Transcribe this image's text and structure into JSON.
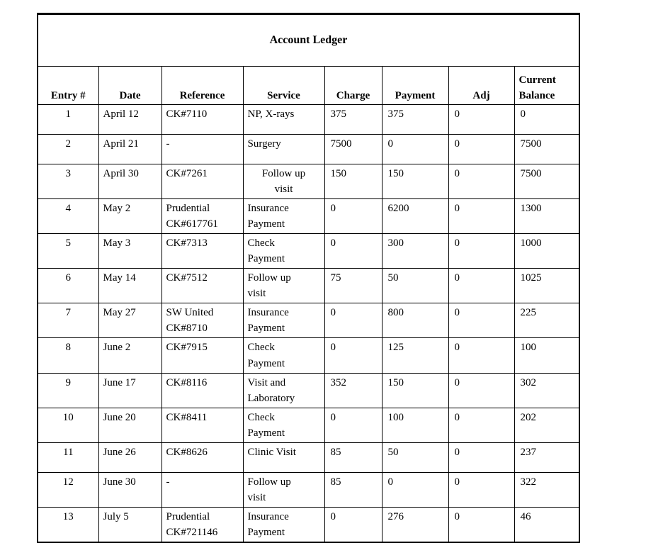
{
  "page": {
    "background": "#ffffff",
    "text_color": "#000000",
    "border_color": "#000000"
  },
  "ledger": {
    "title": "Account Ledger",
    "headers": [
      "Entry #",
      "Date",
      "Reference",
      "Service",
      "Charge",
      "Payment",
      "Adj",
      "Current Balance"
    ],
    "rows": [
      {
        "entry": "1",
        "date": "April 12",
        "reference": "CK#7110",
        "service": "NP, X-rays",
        "service_align": "left",
        "charge": "375",
        "payment": "375",
        "adj": "0",
        "balance": "0"
      },
      {
        "entry": "2",
        "date": "April 21",
        "reference": "-",
        "service": "Surgery",
        "service_align": "left",
        "charge": "7500",
        "payment": "0",
        "adj": "0",
        "balance": "7500"
      },
      {
        "entry": "3",
        "date": "April 30",
        "reference": "CK#7261",
        "service": "Follow up\nvisit",
        "service_align": "center",
        "charge": "150",
        "payment": "150",
        "adj": "0",
        "balance": "7500"
      },
      {
        "entry": "4",
        "date": "May 2",
        "reference": "Prudential\nCK#617761",
        "service": "Insurance\nPayment",
        "service_align": "left",
        "charge": "0",
        "payment": "6200",
        "adj": "0",
        "balance": "1300"
      },
      {
        "entry": "5",
        "date": "May 3",
        "reference": "CK#7313",
        "service": "Check\nPayment",
        "service_align": "left",
        "charge": "0",
        "payment": "300",
        "adj": "0",
        "balance": "1000"
      },
      {
        "entry": "6",
        "date": "May 14",
        "reference": "CK#7512",
        "service": "Follow up\nvisit",
        "service_align": "left",
        "charge": "75",
        "payment": "50",
        "adj": "0",
        "balance": "1025"
      },
      {
        "entry": "7",
        "date": "May 27",
        "reference": "SW United\nCK#8710",
        "service": "Insurance\nPayment",
        "service_align": "left",
        "charge": "0",
        "payment": "800",
        "adj": "0",
        "balance": "225"
      },
      {
        "entry": "8",
        "date": "June 2",
        "reference": "CK#7915",
        "service": "Check\nPayment",
        "service_align": "left",
        "charge": "0",
        "payment": "125",
        "adj": "0",
        "balance": "100"
      },
      {
        "entry": "9",
        "date": "June 17",
        "reference": "CK#8116",
        "service": "Visit and\nLaboratory",
        "service_align": "left",
        "charge": "352",
        "payment": "150",
        "adj": "0",
        "balance": "302"
      },
      {
        "entry": "10",
        "date": "June 20",
        "reference": "CK#8411",
        "service": "Check\nPayment",
        "service_align": "left",
        "charge": "0",
        "payment": "100",
        "adj": "0",
        "balance": "202"
      },
      {
        "entry": "11",
        "date": "June 26",
        "reference": "CK#8626",
        "service": "Clinic Visit",
        "service_align": "left",
        "charge": "85",
        "payment": "50",
        "adj": "0",
        "balance": "237"
      },
      {
        "entry": "12",
        "date": "June 30",
        "reference": "-",
        "service": "Follow up\nvisit",
        "service_align": "left",
        "charge": "85",
        "payment": "0",
        "adj": "0",
        "balance": "322"
      },
      {
        "entry": "13",
        "date": "July 5",
        "reference": "Prudential\nCK#721146",
        "service": "Insurance\nPayment",
        "service_align": "left",
        "charge": "0",
        "payment": "276",
        "adj": "0",
        "balance": "46"
      }
    ]
  }
}
